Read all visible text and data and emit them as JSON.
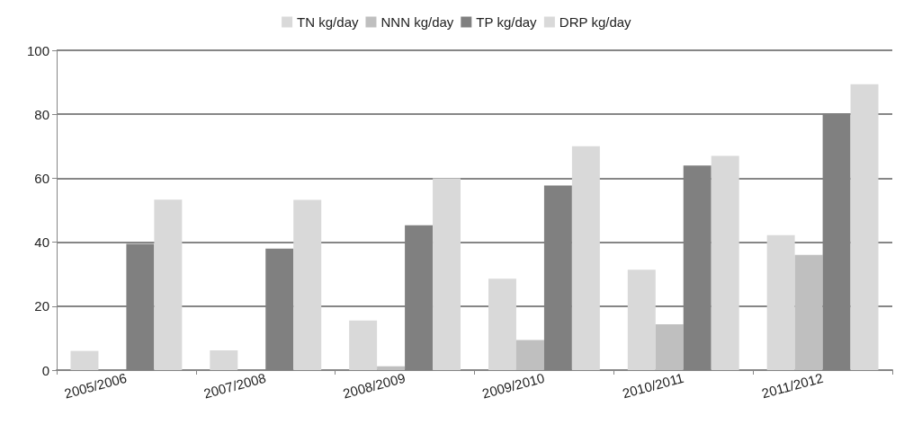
{
  "chart_data": {
    "type": "bar",
    "categories": [
      "2005/2006",
      "2007/2008",
      "2008/2009",
      "2009/2010",
      "2010/2011",
      "2011/2012"
    ],
    "series": [
      {
        "name": "TN kg/day",
        "color": "#d9d9d9",
        "values": [
          6,
          6.2,
          15.5,
          28.6,
          31.4,
          42.2
        ]
      },
      {
        "name": "NNN kg/day",
        "color": "#bfbfbf",
        "values": [
          0,
          null,
          1.2,
          9.4,
          14.3,
          36
        ]
      },
      {
        "name": "TP kg/day",
        "color": "#808080",
        "values": [
          39.5,
          38,
          45.3,
          57.7,
          64,
          80.3
        ]
      },
      {
        "name": "DRP kg/day",
        "color": "#d9d9d9",
        "values": [
          53.3,
          53.2,
          60,
          70,
          67,
          89.4
        ]
      }
    ],
    "ylim": [
      0,
      100
    ],
    "yticks": [
      0,
      20,
      40,
      60,
      80,
      100
    ],
    "grid": "y",
    "legend": "top"
  }
}
